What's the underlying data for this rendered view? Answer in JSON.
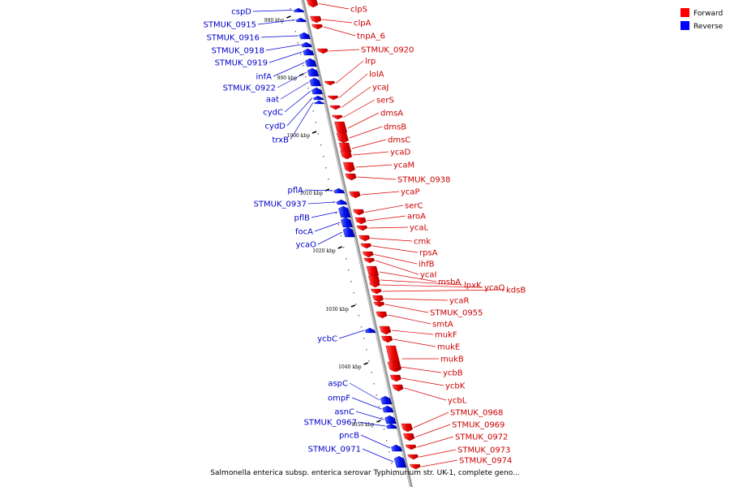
{
  "caption": "Salmonella enterica subsp. enterica serovar Typhimurium str. UK-1, complete geno...",
  "legend": [
    {
      "label": "Forward",
      "color": "#ff0000"
    },
    {
      "label": "Reverse",
      "color": "#0000ff"
    }
  ],
  "colors": {
    "forward": "#ee1111",
    "reverse": "#1122ee",
    "forward_label": "#cc0000",
    "reverse_label": "#0000cc",
    "backbone": "#888888"
  },
  "ticks": [
    "980 kbp",
    "990 kbp",
    "1000 kbp",
    "1010 kbp",
    "1020 kbp",
    "1030 kbp",
    "1040 kbp",
    "1050 kbp"
  ],
  "forward_genes": [
    "clpS",
    "clpA",
    "tnpA_6",
    "STMUK_0920",
    "lrp",
    "lolA",
    "ycaJ",
    "serS",
    "dmsA",
    "dmsB",
    "dmsC",
    "ycaD",
    "ycaM",
    "STMUK_0938",
    "ycaP",
    "serC",
    "aroA",
    "ycaL",
    "cmk",
    "rpsA",
    "ihfB",
    "ycaI",
    "msbA",
    "lpxK",
    "ycaQ",
    "kdsB",
    "ycaR",
    "STMUK_0955",
    "smtA",
    "mukF",
    "mukE",
    "mukB",
    "ycbB",
    "ycbK",
    "ycbL",
    "STMUK_0968",
    "STMUK_0969",
    "STMUK_0972",
    "STMUK_0973",
    "STMUK_0974"
  ],
  "reverse_genes": [
    "cspD",
    "STMUK_0915",
    "STMUK_0916",
    "STMUK_0918",
    "STMUK_0919",
    "infA",
    "STMUK_0922",
    "aat",
    "cydC",
    "cydD",
    "trxB",
    "pflA",
    "STMUK_0937",
    "pflB",
    "focA",
    "ycaO",
    "ycbC",
    "aspC",
    "ompF",
    "asnC",
    "STMUK_0967",
    "pncB",
    "STMUK_0971"
  ]
}
